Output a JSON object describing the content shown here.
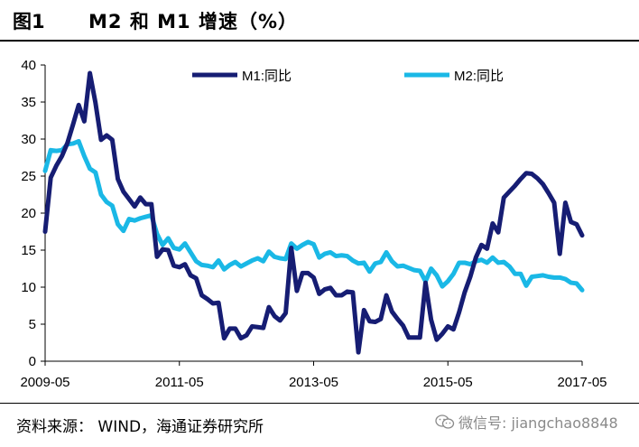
{
  "header": {
    "figure_label": "图1",
    "title": "M2 和 M1 增速（%）"
  },
  "footer": {
    "source": "资料来源：  WIND，海通证券研究所",
    "watermark": "微信号: jiangchao8848",
    "watermark_icon": "wechat-icon"
  },
  "colors": {
    "m1": "#161d73",
    "m2": "#1ab8e6"
  },
  "chart_data": {
    "type": "line",
    "title": "",
    "xlabel": "",
    "ylabel": "",
    "ylim": [
      0,
      40
    ],
    "yticks": [
      0,
      5,
      10,
      15,
      20,
      25,
      30,
      35,
      40
    ],
    "x_tick_labels": [
      "2009-05",
      "2011-05",
      "2013-05",
      "2015-05",
      "2017-05"
    ],
    "x_range": [
      "2009-05",
      "2017-05"
    ],
    "grid": false,
    "legend": "top",
    "series": [
      {
        "name": "M1:同比",
        "color": "#161d73",
        "x": [
          "2009-05",
          "2009-06",
          "2009-07",
          "2009-08",
          "2009-09",
          "2009-10",
          "2009-11",
          "2009-12",
          "2010-01",
          "2010-02",
          "2010-03",
          "2010-04",
          "2010-05",
          "2010-06",
          "2010-07",
          "2010-08",
          "2010-09",
          "2010-10",
          "2010-11",
          "2010-12",
          "2011-01",
          "2011-02",
          "2011-03",
          "2011-04",
          "2011-05",
          "2011-06",
          "2011-07",
          "2011-08",
          "2011-09",
          "2011-10",
          "2011-11",
          "2011-12",
          "2012-01",
          "2012-02",
          "2012-03",
          "2012-04",
          "2012-05",
          "2012-06",
          "2012-07",
          "2012-08",
          "2012-09",
          "2012-10",
          "2012-11",
          "2012-12",
          "2013-01",
          "2013-02",
          "2013-03",
          "2013-04",
          "2013-05",
          "2013-06",
          "2013-07",
          "2013-08",
          "2013-09",
          "2013-10",
          "2013-11",
          "2013-12",
          "2014-01",
          "2014-02",
          "2014-03",
          "2014-04",
          "2014-05",
          "2014-06",
          "2014-07",
          "2014-08",
          "2014-09",
          "2014-10",
          "2014-11",
          "2014-12",
          "2015-01",
          "2015-02",
          "2015-03",
          "2015-04",
          "2015-05",
          "2015-06",
          "2015-07",
          "2015-08",
          "2015-09",
          "2015-10",
          "2015-11",
          "2015-12",
          "2016-01",
          "2016-02",
          "2016-03",
          "2016-04",
          "2016-05",
          "2016-06",
          "2016-07",
          "2016-08",
          "2016-09",
          "2016-10",
          "2016-11",
          "2016-12",
          "2017-01",
          "2017-02",
          "2017-03",
          "2017-04",
          "2017-05"
        ],
        "values": [
          17.5,
          24.8,
          26.4,
          27.7,
          29.5,
          32.0,
          34.6,
          32.4,
          38.9,
          34.9,
          29.9,
          30.5,
          29.9,
          24.6,
          22.9,
          21.9,
          20.9,
          22.1,
          21.2,
          21.2,
          14.1,
          15.1,
          15.0,
          12.9,
          12.7,
          13.1,
          11.6,
          11.2,
          8.9,
          8.4,
          7.8,
          7.9,
          3.1,
          4.4,
          4.4,
          3.1,
          3.5,
          4.7,
          4.6,
          4.5,
          7.3,
          6.1,
          5.5,
          6.5,
          15.3,
          9.5,
          11.9,
          11.9,
          11.3,
          9.1,
          9.7,
          9.9,
          8.9,
          8.9,
          9.4,
          9.3,
          1.2,
          6.9,
          5.4,
          5.3,
          5.7,
          8.9,
          6.7,
          5.7,
          4.8,
          3.2,
          3.2,
          3.2,
          10.6,
          5.6,
          2.9,
          3.7,
          4.7,
          4.3,
          6.6,
          9.3,
          11.4,
          14.0,
          15.7,
          15.2,
          18.6,
          17.4,
          22.1,
          22.9,
          23.7,
          24.6,
          25.4,
          25.3,
          24.7,
          23.9,
          22.7,
          21.4,
          14.5,
          21.4,
          18.8,
          18.5,
          17.0
        ]
      },
      {
        "name": "M2:同比",
        "color": "#1ab8e6",
        "x": [
          "2009-05",
          "2009-06",
          "2009-07",
          "2009-08",
          "2009-09",
          "2009-10",
          "2009-11",
          "2009-12",
          "2010-01",
          "2010-02",
          "2010-03",
          "2010-04",
          "2010-05",
          "2010-06",
          "2010-07",
          "2010-08",
          "2010-09",
          "2010-10",
          "2010-11",
          "2010-12",
          "2011-01",
          "2011-02",
          "2011-03",
          "2011-04",
          "2011-05",
          "2011-06",
          "2011-07",
          "2011-08",
          "2011-09",
          "2011-10",
          "2011-11",
          "2011-12",
          "2012-01",
          "2012-02",
          "2012-03",
          "2012-04",
          "2012-05",
          "2012-06",
          "2012-07",
          "2012-08",
          "2012-09",
          "2012-10",
          "2012-11",
          "2012-12",
          "2013-01",
          "2013-02",
          "2013-03",
          "2013-04",
          "2013-05",
          "2013-06",
          "2013-07",
          "2013-08",
          "2013-09",
          "2013-10",
          "2013-11",
          "2013-12",
          "2014-01",
          "2014-02",
          "2014-03",
          "2014-04",
          "2014-05",
          "2014-06",
          "2014-07",
          "2014-08",
          "2014-09",
          "2014-10",
          "2014-11",
          "2014-12",
          "2015-01",
          "2015-02",
          "2015-03",
          "2015-04",
          "2015-05",
          "2015-06",
          "2015-07",
          "2015-08",
          "2015-09",
          "2015-10",
          "2015-11",
          "2015-12",
          "2016-01",
          "2016-02",
          "2016-03",
          "2016-04",
          "2016-05",
          "2016-06",
          "2016-07",
          "2016-08",
          "2016-09",
          "2016-10",
          "2016-11",
          "2016-12",
          "2017-01",
          "2017-02",
          "2017-03",
          "2017-04",
          "2017-05"
        ],
        "values": [
          25.7,
          28.5,
          28.4,
          28.5,
          29.3,
          29.4,
          29.7,
          27.7,
          26.0,
          25.5,
          22.5,
          21.5,
          21.0,
          18.5,
          17.6,
          19.2,
          19.0,
          19.3,
          19.5,
          19.7,
          17.2,
          15.7,
          16.6,
          15.3,
          15.1,
          15.9,
          14.7,
          13.5,
          13.0,
          12.9,
          12.7,
          13.6,
          12.4,
          13.0,
          13.4,
          12.8,
          13.2,
          13.6,
          13.9,
          13.5,
          14.8,
          14.1,
          13.9,
          13.8,
          15.9,
          15.2,
          15.7,
          16.1,
          15.8,
          14.0,
          14.5,
          14.7,
          14.2,
          14.3,
          14.2,
          13.6,
          13.2,
          13.3,
          12.1,
          13.2,
          13.4,
          14.7,
          13.5,
          12.8,
          12.9,
          12.6,
          12.3,
          12.2,
          10.8,
          12.5,
          11.6,
          10.1,
          10.8,
          11.8,
          13.3,
          13.3,
          13.1,
          13.5,
          13.7,
          13.3,
          14.0,
          13.3,
          13.4,
          12.8,
          11.8,
          11.8,
          10.2,
          11.4,
          11.5,
          11.6,
          11.4,
          11.3,
          11.3,
          11.1,
          10.6,
          10.5,
          9.6
        ]
      }
    ]
  }
}
